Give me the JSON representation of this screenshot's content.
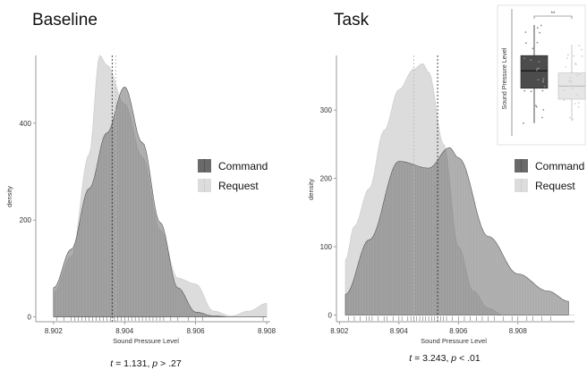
{
  "colors": {
    "command_fill": "#6a6a6a",
    "request_fill": "#dcdcdc",
    "overlap_fill": "#a6a6a6",
    "command_line": "#333333",
    "request_line": "#bdbdbd",
    "rug": "#555555"
  },
  "legend": {
    "command_label": "Command",
    "request_label": "Request"
  },
  "chart_data": [
    {
      "type": "area",
      "title": "Baseline",
      "xlabel": "Sound Pressure Level",
      "ylabel": "density",
      "xlim": [
        8.9015,
        8.9081
      ],
      "ylim": [
        -10,
        540
      ],
      "xticks": [
        8.902,
        8.904,
        8.906,
        8.908
      ],
      "xtick_labels": [
        "8.902",
        "8.904",
        "8.906",
        "8.908"
      ],
      "yticks": [
        0,
        200,
        400
      ],
      "ytick_labels": [
        "0",
        "200",
        "400"
      ],
      "grid": false,
      "legend_position": "right",
      "series": [
        {
          "name": "Command",
          "x": [
            8.902,
            8.9025,
            8.903,
            8.9035,
            8.904,
            8.9045,
            8.905,
            8.9055,
            8.906,
            8.9065,
            8.907,
            8.9075,
            8.908
          ],
          "values": [
            60,
            140,
            265,
            380,
            475,
            360,
            195,
            60,
            10,
            2,
            0,
            0,
            0
          ],
          "mean": 8.90365
        },
        {
          "name": "Request",
          "x": [
            8.902,
            8.9025,
            8.903,
            8.9033,
            8.9035,
            8.904,
            8.9045,
            8.905,
            8.9055,
            8.906,
            8.9065,
            8.907,
            8.9075,
            8.908
          ],
          "values": [
            50,
            125,
            335,
            540,
            520,
            440,
            330,
            180,
            80,
            68,
            12,
            2,
            12,
            28
          ],
          "mean": 8.90375
        }
      ],
      "rug": [
        8.9021,
        8.9023,
        8.9025,
        8.9026,
        8.9027,
        8.9028,
        8.9029,
        8.903,
        8.9031,
        8.9032,
        8.9033,
        8.9034,
        8.9035,
        8.9036,
        8.9037,
        8.9038,
        8.9039,
        8.904,
        8.9041,
        8.9042,
        8.9043,
        8.9044,
        8.9045,
        8.9046,
        8.9047,
        8.9048,
        8.9049,
        8.905,
        8.9051,
        8.9053,
        8.9055,
        8.9058,
        8.906,
        8.9062,
        8.9079
      ],
      "annotation": {
        "t_label": "t",
        "rest": " = 1.131, ",
        "p_label": "p",
        "p_rest": " > .27"
      }
    },
    {
      "type": "area",
      "title": "Task",
      "xlabel": "Sound Pressure Level",
      "ylabel": "density",
      "xlim": [
        8.9019,
        8.9099
      ],
      "ylim": [
        -10,
        380
      ],
      "xticks": [
        8.902,
        8.904,
        8.906,
        8.908
      ],
      "xtick_labels": [
        "8.902",
        "8.904",
        "8.906",
        "8.908"
      ],
      "yticks": [
        0,
        100,
        200,
        300
      ],
      "ytick_labels": [
        "0",
        "100",
        "200",
        "300"
      ],
      "grid": false,
      "legend_position": "right",
      "series": [
        {
          "name": "Command",
          "x": [
            8.9022,
            8.903,
            8.904,
            8.905,
            8.9057,
            8.906,
            8.907,
            8.908,
            8.909,
            8.9097
          ],
          "values": [
            30,
            110,
            225,
            215,
            245,
            230,
            115,
            60,
            35,
            20
          ],
          "mean": 8.9053
        },
        {
          "name": "Request",
          "x": [
            8.9022,
            8.9025,
            8.903,
            8.9035,
            8.904,
            8.9045,
            8.9048,
            8.905,
            8.9055,
            8.906,
            8.9065,
            8.907,
            8.9075,
            8.9099
          ],
          "values": [
            80,
            130,
            185,
            270,
            330,
            360,
            368,
            355,
            250,
            100,
            35,
            10,
            0,
            0
          ],
          "mean": 8.9045
        }
      ],
      "rug": [
        8.9023,
        8.9025,
        8.9027,
        8.9029,
        8.903,
        8.9031,
        8.9033,
        8.9035,
        8.9036,
        8.9038,
        8.904,
        8.9041,
        8.9043,
        8.9044,
        8.9045,
        8.9046,
        8.9047,
        8.9048,
        8.9049,
        8.905,
        8.9051,
        8.9052,
        8.9053,
        8.9054,
        8.9055,
        8.9056,
        8.9058,
        8.906,
        8.9062,
        8.9064,
        8.9066,
        8.9068,
        8.907,
        8.9072,
        8.9075,
        8.9078,
        8.908,
        8.9083,
        8.9085,
        8.9088,
        8.9091
      ],
      "annotation": {
        "t_label": "t",
        "rest": " = 3.243, ",
        "p_label": "p",
        "p_rest": " < .01"
      }
    },
    {
      "type": "box",
      "ylabel": "Sound Pressure Level",
      "significance": "**",
      "series": [
        {
          "name": "Command",
          "whisker_low": 0.1,
          "q1": 0.42,
          "median": 0.58,
          "q3": 0.72,
          "whisker_high": 1.0
        },
        {
          "name": "Request",
          "whisker_low": 0.12,
          "q1": 0.32,
          "median": 0.44,
          "q3": 0.56,
          "whisker_high": 0.82
        }
      ],
      "value_scale": "relative (unlabeled axis)"
    }
  ]
}
